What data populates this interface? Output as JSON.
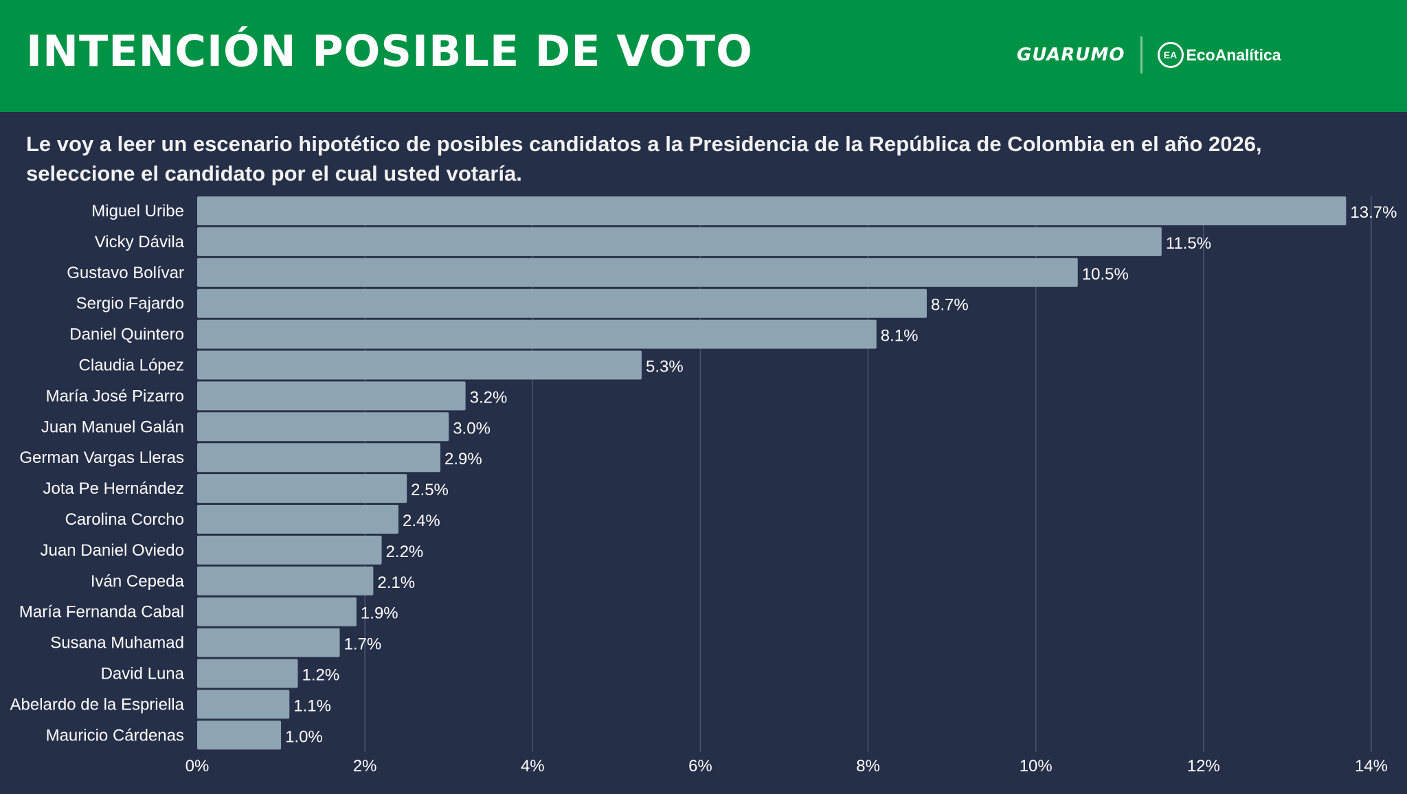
{
  "header": {
    "title": "INTENCIÓN POSIBLE DE VOTO",
    "logo_left": "GUARUMO",
    "logo_right": "EcoAnalítica",
    "logo_right_mark": "EA",
    "background_color": "#009345"
  },
  "subtitle": "Le voy a leer un escenario hipotético de posibles candidatos a la Presidencia de la República de Colombia en el año 2026, seleccione el candidato por el cual usted votaría.",
  "chart_data": {
    "type": "bar",
    "orientation": "horizontal",
    "categories": [
      "Miguel Uribe",
      "Vicky Dávila",
      "Gustavo Bolívar",
      "Sergio Fajardo",
      "Daniel Quintero",
      "Claudia López",
      "María José Pizarro",
      "Juan Manuel Galán",
      "German Vargas Lleras",
      "Jota Pe Hernández",
      "Carolina Corcho",
      "Juan Daniel Oviedo",
      "Iván Cepeda",
      "María Fernanda Cabal",
      "Susana Muhamad",
      "David Luna",
      "Abelardo de la Espriella",
      "Mauricio Cárdenas"
    ],
    "values": [
      13.7,
      11.5,
      10.5,
      8.7,
      8.1,
      5.3,
      3.2,
      3.0,
      2.9,
      2.5,
      2.4,
      2.2,
      2.1,
      1.9,
      1.7,
      1.2,
      1.1,
      1.0
    ],
    "data_labels": [
      "13.7%",
      "11.5%",
      "10.5%",
      "8.7%",
      "8.1%",
      "5.3%",
      "3.2%",
      "3.0%",
      "2.9%",
      "2.5%",
      "2.4%",
      "2.2%",
      "2.1%",
      "1.9%",
      "1.7%",
      "1.2%",
      "1.1%",
      "1.0%"
    ],
    "xlim": [
      0,
      14
    ],
    "xticks": [
      0,
      2,
      4,
      6,
      8,
      10,
      12,
      14
    ],
    "xtick_labels": [
      "0%",
      "2%",
      "4%",
      "6%",
      "8%",
      "10%",
      "12%",
      "14%"
    ],
    "grid": "vertical",
    "bar_color": "#8fa4b3",
    "background_color": "#252f48"
  }
}
